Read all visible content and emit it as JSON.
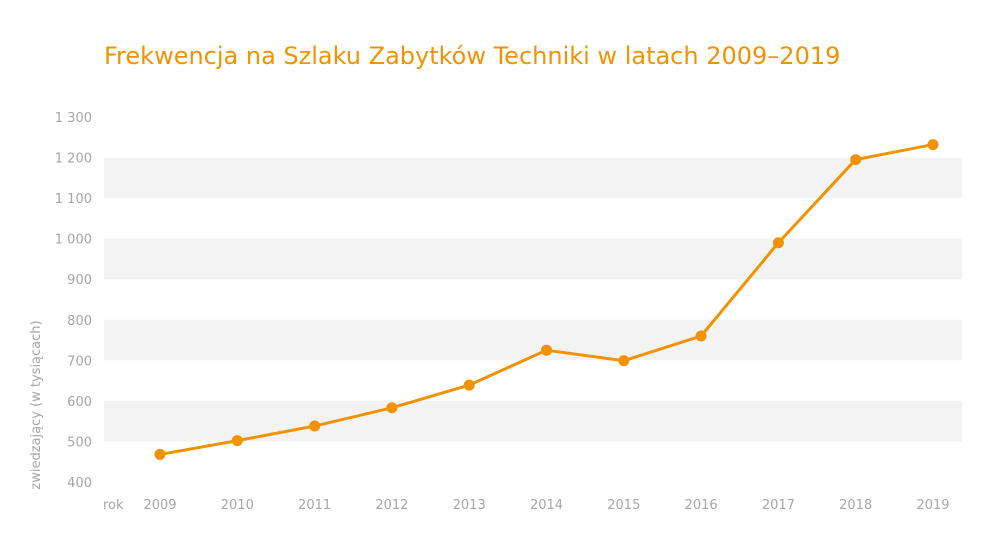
{
  "chart_data": {
    "type": "line",
    "title": "Frekwencja na Szlaku Zabytków Techniki w latach 2009–2019",
    "xlabel": "rok",
    "ylabel": "zwiedzający (w tysiącach)",
    "ylim": [
      400,
      1300
    ],
    "yticks": [
      400,
      500,
      600,
      700,
      800,
      900,
      1000,
      1100,
      1200,
      1300
    ],
    "ytick_labels": [
      "400",
      "500",
      "600",
      "700",
      "800",
      "900",
      "1 000",
      "1 100",
      "1 200",
      "1 300"
    ],
    "categories": [
      "2009",
      "2010",
      "2011",
      "2012",
      "2013",
      "2014",
      "2015",
      "2016",
      "2017",
      "2018",
      "2019"
    ],
    "values": [
      468,
      502,
      538,
      583,
      639,
      725,
      699,
      760,
      990,
      1195,
      1232
    ],
    "grid": "alternating horizontal bands",
    "colors": {
      "line": "#f39200",
      "title": "#f39200",
      "band": "#f3f3f3",
      "text": "#a6a6a6"
    }
  }
}
